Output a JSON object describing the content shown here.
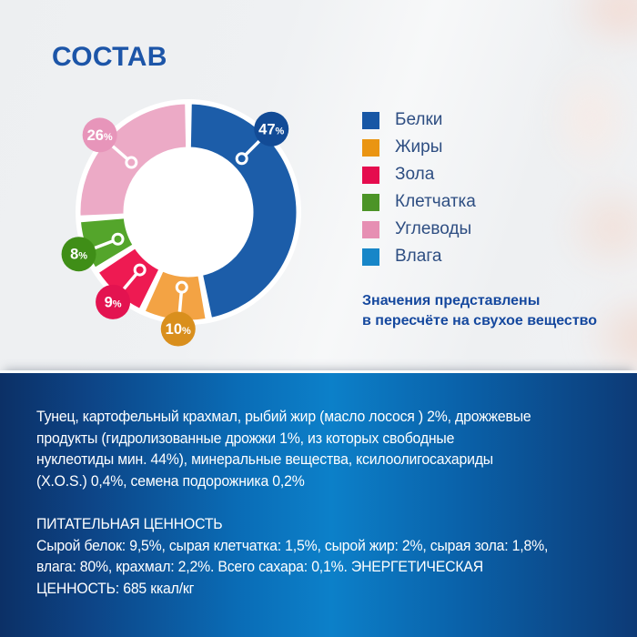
{
  "page": {
    "title": "СОСТАВ",
    "note_lines": [
      "Значения представлены",
      "в пересчёте на свухое вещество"
    ]
  },
  "chart_data": {
    "type": "pie",
    "subtype": "donut",
    "title": "СОСТАВ",
    "unit": "%",
    "segments": [
      {
        "label": "Белки",
        "value": 47,
        "color": "#1c5da9",
        "badge_color": "#124b96",
        "label_angle": 45
      },
      {
        "label": "Жиры",
        "value": 10,
        "color": "#f3a344",
        "badge_color": "#d98f1d",
        "label_angle": 185
      },
      {
        "label": "Зола",
        "value": 9,
        "color": "#ee1a52",
        "badge_color": "#e31350",
        "label_angle": 220
      },
      {
        "label": "Клетчатка",
        "value": 8,
        "color": "#54a52b",
        "badge_color": "#3f8e17",
        "label_angle": 249
      },
      {
        "label": "Углеводы",
        "value": 26,
        "color": "#ecaac6",
        "badge_color": "#e795ba",
        "label_angle": 311
      }
    ],
    "legend": [
      {
        "label": "Белки",
        "color": "#1857a5"
      },
      {
        "label": "Жиры",
        "color": "#ea9512"
      },
      {
        "label": "Зола",
        "color": "#e50c4e"
      },
      {
        "label": "Клетчатка",
        "color": "#4c9427"
      },
      {
        "label": "Углеводы",
        "color": "#e68fb3"
      },
      {
        "label": "Влага",
        "color": "#1786c8"
      }
    ],
    "legend_position": "right",
    "note": "Значения представлены в пересчёте на свухое вещество"
  },
  "panel": {
    "ingredients_lines": [
      "Тунец, картофельный крахмал, рыбий жир (масло лосося ) 2%, дрожжевые",
      "продукты (гидролизованные дрожжи 1%, из которых свободные",
      "нуклеотиды мин. 44%), минеральные вещества, ксилоолигосахариды",
      "(X.O.S.) 0,4%, семена подорожника 0,2%"
    ],
    "nutrition_title": "ПИТАТЕЛЬНАЯ ЦЕННОСТЬ",
    "nutrition_lines": [
      "Сырой белок: 9,5%, сырая клетчатка: 1,5%, сырой жир: 2%, сырая зола: 1,8%,",
      "влага: 80%, крахмал: 2,2%. Всего сахара: 0,1%. ЭНЕРГЕТИЧЕСКАЯ",
      "ЦЕННОСТЬ: 685 ккал/кг"
    ]
  }
}
